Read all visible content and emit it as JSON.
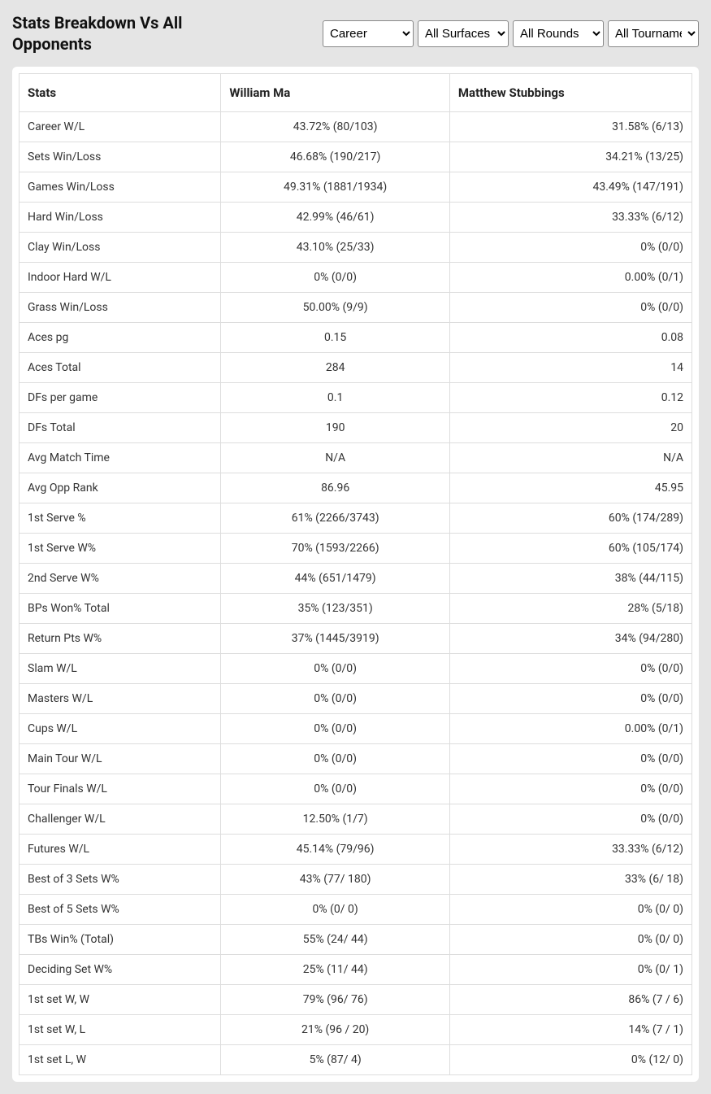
{
  "header": {
    "title": "Stats Breakdown Vs All Opponents"
  },
  "filters": {
    "period": "Career",
    "surface": "All Surfaces",
    "rounds": "All Rounds",
    "tournaments": "All Tournaments"
  },
  "table": {
    "columns": {
      "stats": "Stats",
      "player1": "William Ma",
      "player2": "Matthew Stubbings"
    },
    "rows": [
      {
        "stat": "Career W/L",
        "p1": "43.72% (80/103)",
        "p2": "31.58% (6/13)"
      },
      {
        "stat": "Sets Win/Loss",
        "p1": "46.68% (190/217)",
        "p2": "34.21% (13/25)"
      },
      {
        "stat": "Games Win/Loss",
        "p1": "49.31% (1881/1934)",
        "p2": "43.49% (147/191)"
      },
      {
        "stat": "Hard Win/Loss",
        "p1": "42.99% (46/61)",
        "p2": "33.33% (6/12)"
      },
      {
        "stat": "Clay Win/Loss",
        "p1": "43.10% (25/33)",
        "p2": "0% (0/0)"
      },
      {
        "stat": "Indoor Hard W/L",
        "p1": "0% (0/0)",
        "p2": "0.00% (0/1)"
      },
      {
        "stat": "Grass Win/Loss",
        "p1": "50.00% (9/9)",
        "p2": "0% (0/0)"
      },
      {
        "stat": "Aces pg",
        "p1": "0.15",
        "p2": "0.08"
      },
      {
        "stat": "Aces Total",
        "p1": "284",
        "p2": "14"
      },
      {
        "stat": "DFs per game",
        "p1": "0.1",
        "p2": "0.12"
      },
      {
        "stat": "DFs Total",
        "p1": "190",
        "p2": "20"
      },
      {
        "stat": "Avg Match Time",
        "p1": "N/A",
        "p2": "N/A"
      },
      {
        "stat": "Avg Opp Rank",
        "p1": "86.96",
        "p2": "45.95"
      },
      {
        "stat": "1st Serve %",
        "p1": "61% (2266/3743)",
        "p2": "60% (174/289)"
      },
      {
        "stat": "1st Serve W%",
        "p1": "70% (1593/2266)",
        "p2": "60% (105/174)"
      },
      {
        "stat": "2nd Serve W%",
        "p1": "44% (651/1479)",
        "p2": "38% (44/115)"
      },
      {
        "stat": "BPs Won% Total",
        "p1": "35% (123/351)",
        "p2": "28% (5/18)"
      },
      {
        "stat": "Return Pts W%",
        "p1": "37% (1445/3919)",
        "p2": "34% (94/280)"
      },
      {
        "stat": "Slam W/L",
        "p1": "0% (0/0)",
        "p2": "0% (0/0)"
      },
      {
        "stat": "Masters W/L",
        "p1": "0% (0/0)",
        "p2": "0% (0/0)"
      },
      {
        "stat": "Cups W/L",
        "p1": "0% (0/0)",
        "p2": "0.00% (0/1)"
      },
      {
        "stat": "Main Tour W/L",
        "p1": "0% (0/0)",
        "p2": "0% (0/0)"
      },
      {
        "stat": "Tour Finals W/L",
        "p1": "0% (0/0)",
        "p2": "0% (0/0)"
      },
      {
        "stat": "Challenger W/L",
        "p1": "12.50% (1/7)",
        "p2": "0% (0/0)"
      },
      {
        "stat": "Futures W/L",
        "p1": "45.14% (79/96)",
        "p2": "33.33% (6/12)"
      },
      {
        "stat": "Best of 3 Sets W%",
        "p1": "43% (77/ 180)",
        "p2": "33% (6/ 18)"
      },
      {
        "stat": "Best of 5 Sets W%",
        "p1": "0% (0/ 0)",
        "p2": "0% (0/ 0)"
      },
      {
        "stat": "TBs Win% (Total)",
        "p1": "55% (24/ 44)",
        "p2": "0% (0/ 0)"
      },
      {
        "stat": "Deciding Set W%",
        "p1": "25% (11/ 44)",
        "p2": "0% (0/ 1)"
      },
      {
        "stat": "1st set W, W",
        "p1": "79% (96/ 76)",
        "p2": "86% (7 / 6)"
      },
      {
        "stat": "1st set W, L",
        "p1": "21% (96 / 20)",
        "p2": "14% (7 / 1)"
      },
      {
        "stat": "1st set L, W",
        "p1": "5% (87/ 4)",
        "p2": "0% (12/ 0)"
      }
    ]
  }
}
